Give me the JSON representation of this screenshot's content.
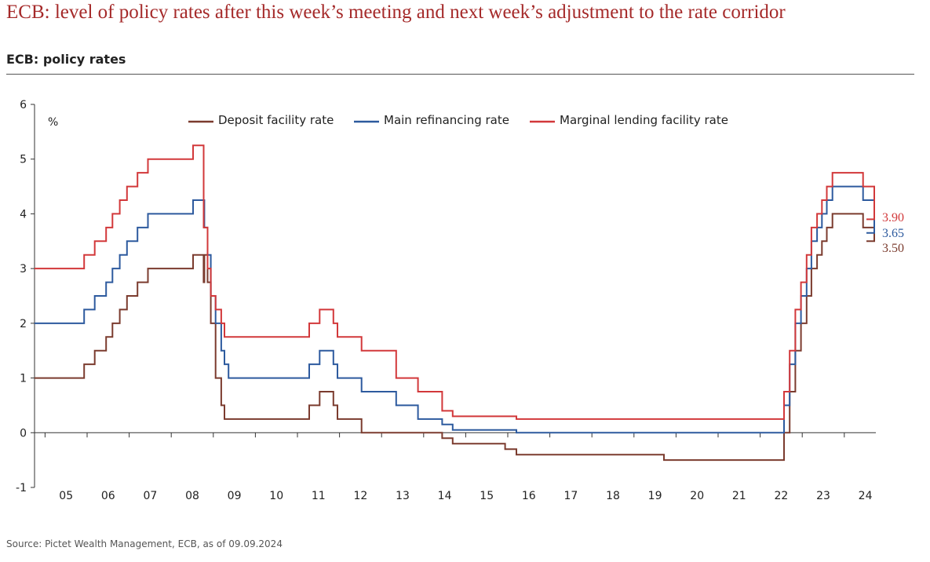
{
  "header": {
    "title": "ECB: level of policy rates after this week’s meeting and next week’s adjustment to the rate corridor",
    "subtitle": "ECB: policy rates"
  },
  "footer": {
    "source": "Source: Pictet Wealth Management, ECB, as of 09.09.2024"
  },
  "chart_data": {
    "type": "line",
    "step": true,
    "ylabel": "%",
    "ylim": [
      -1,
      6
    ],
    "yticks": [
      -1,
      0,
      1,
      2,
      3,
      4,
      5,
      6
    ],
    "xlim": [
      2004.75,
      2024.75
    ],
    "xticks": [
      {
        "label": "05",
        "year": 2005
      },
      {
        "label": "06",
        "year": 2006
      },
      {
        "label": "07",
        "year": 2007
      },
      {
        "label": "08",
        "year": 2008
      },
      {
        "label": "09",
        "year": 2009
      },
      {
        "label": "10",
        "year": 2010
      },
      {
        "label": "11",
        "year": 2011
      },
      {
        "label": "12",
        "year": 2012
      },
      {
        "label": "13",
        "year": 2013
      },
      {
        "label": "14",
        "year": 2014
      },
      {
        "label": "15",
        "year": 2015
      },
      {
        "label": "16",
        "year": 2016
      },
      {
        "label": "17",
        "year": 2017
      },
      {
        "label": "18",
        "year": 2018
      },
      {
        "label": "19",
        "year": 2019
      },
      {
        "label": "20",
        "year": 2020
      },
      {
        "label": "21",
        "year": 2021
      },
      {
        "label": "22",
        "year": 2022
      },
      {
        "label": "23",
        "year": 2023
      },
      {
        "label": "24",
        "year": 2024
      }
    ],
    "grid": false,
    "legend_position": "top",
    "series": [
      {
        "name": "Deposit facility rate",
        "color": "#7b3b2e",
        "end_label": "3.50",
        "x": [
          "2004-10-01",
          "2005-12-06",
          "2006-03-08",
          "2006-06-15",
          "2006-08-09",
          "2006-10-11",
          "2006-12-13",
          "2007-03-14",
          "2007-06-13",
          "2008-07-09",
          "2008-10-08",
          "2008-10-15",
          "2008-11-12",
          "2008-12-10",
          "2009-01-21",
          "2009-03-11",
          "2009-04-08",
          "2009-05-13",
          "2011-04-13",
          "2011-07-13",
          "2011-11-09",
          "2011-12-14",
          "2012-07-11",
          "2014-06-11",
          "2014-09-10",
          "2015-12-09",
          "2016-03-16",
          "2019-09-18",
          "2022-07-27",
          "2022-09-14",
          "2022-11-02",
          "2022-12-21",
          "2023-02-08",
          "2023-03-22",
          "2023-05-10",
          "2023-06-21",
          "2023-08-02",
          "2023-09-20",
          "2024-06-12",
          "2024-09-18"
        ],
        "y": [
          1.0,
          1.25,
          1.5,
          1.75,
          2.0,
          2.25,
          2.5,
          2.75,
          3.0,
          3.25,
          2.75,
          3.25,
          2.75,
          2.0,
          1.0,
          0.5,
          0.25,
          0.25,
          0.5,
          0.75,
          0.5,
          0.25,
          0.0,
          -0.1,
          -0.2,
          -0.3,
          -0.4,
          -0.5,
          0.0,
          0.75,
          1.5,
          2.0,
          2.5,
          3.0,
          3.25,
          3.5,
          3.75,
          4.0,
          3.75,
          3.5
        ]
      },
      {
        "name": "Main refinancing rate",
        "color": "#2d5a9e",
        "end_label": "3.65",
        "x": [
          "2004-10-01",
          "2005-12-06",
          "2006-03-08",
          "2006-06-15",
          "2006-08-09",
          "2006-10-11",
          "2006-12-13",
          "2007-03-14",
          "2007-06-13",
          "2008-07-09",
          "2008-10-15",
          "2008-11-12",
          "2008-12-10",
          "2009-01-21",
          "2009-03-11",
          "2009-04-08",
          "2009-05-13",
          "2011-04-13",
          "2011-07-13",
          "2011-11-09",
          "2011-12-14",
          "2012-07-11",
          "2013-05-08",
          "2013-11-13",
          "2014-06-11",
          "2014-09-10",
          "2016-03-16",
          "2022-07-27",
          "2022-09-14",
          "2022-11-02",
          "2022-12-21",
          "2023-02-08",
          "2023-03-22",
          "2023-05-10",
          "2023-06-21",
          "2023-08-02",
          "2023-09-20",
          "2024-06-12",
          "2024-09-18"
        ],
        "y": [
          2.0,
          2.25,
          2.5,
          2.75,
          3.0,
          3.25,
          3.5,
          3.75,
          4.0,
          4.25,
          3.75,
          3.25,
          2.5,
          2.0,
          1.5,
          1.25,
          1.0,
          1.25,
          1.5,
          1.25,
          1.0,
          0.75,
          0.5,
          0.25,
          0.15,
          0.05,
          0.0,
          0.5,
          1.25,
          2.0,
          2.5,
          3.0,
          3.5,
          3.75,
          4.0,
          4.25,
          4.5,
          4.25,
          3.65
        ]
      },
      {
        "name": "Marginal lending facility rate",
        "color": "#d2383a",
        "end_label": "3.90",
        "x": [
          "2004-10-01",
          "2005-12-06",
          "2006-03-08",
          "2006-06-15",
          "2006-08-09",
          "2006-10-11",
          "2006-12-13",
          "2007-03-14",
          "2007-06-13",
          "2008-07-09",
          "2008-10-09",
          "2008-11-12",
          "2008-12-10",
          "2009-01-21",
          "2009-03-11",
          "2009-04-08",
          "2009-05-13",
          "2011-04-13",
          "2011-07-13",
          "2011-11-09",
          "2011-12-14",
          "2012-07-11",
          "2013-05-08",
          "2013-11-13",
          "2014-06-11",
          "2014-09-10",
          "2015-12-09",
          "2016-03-16",
          "2022-07-27",
          "2022-09-14",
          "2022-11-02",
          "2022-12-21",
          "2023-02-08",
          "2023-03-22",
          "2023-05-10",
          "2023-06-21",
          "2023-08-02",
          "2023-09-20",
          "2024-06-12",
          "2024-09-18"
        ],
        "y": [
          3.0,
          3.25,
          3.5,
          3.75,
          4.0,
          4.25,
          4.5,
          4.75,
          5.0,
          5.25,
          3.75,
          3.0,
          2.5,
          2.25,
          2.0,
          1.75,
          1.75,
          2.0,
          2.25,
          2.0,
          1.75,
          1.5,
          1.0,
          0.75,
          0.4,
          0.3,
          0.3,
          0.25,
          0.75,
          1.5,
          2.25,
          2.75,
          3.25,
          3.75,
          4.0,
          4.25,
          4.5,
          4.75,
          4.5,
          3.9
        ]
      }
    ]
  }
}
